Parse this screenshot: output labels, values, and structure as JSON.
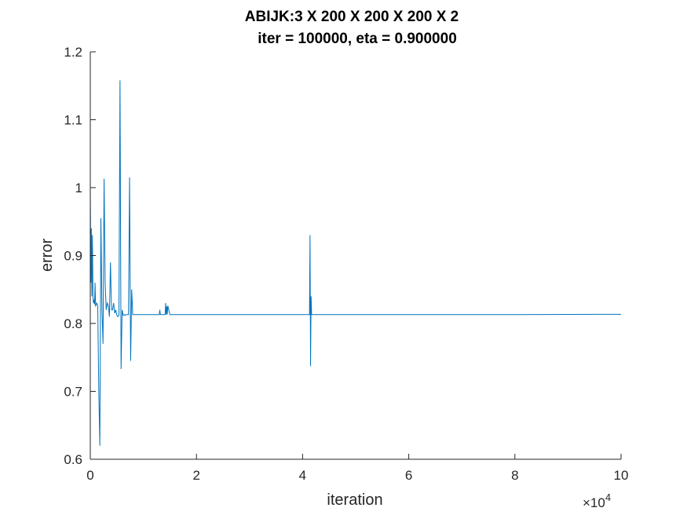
{
  "chart_data": {
    "type": "line",
    "title": "ABIJK:3 X 200 X 200 X 200 X 2",
    "subtitle": "iter = 100000, eta = 0.900000",
    "xlabel": "iteration",
    "ylabel": "error",
    "x_exponent_base": "×10",
    "x_exponent_power": "4",
    "xlim": [
      0,
      10
    ],
    "ylim": [
      0.6,
      1.2
    ],
    "xticks": [
      "0",
      "2",
      "4",
      "6",
      "8",
      "10"
    ],
    "yticks": [
      "0.6",
      "0.7",
      "0.8",
      "0.9",
      "1",
      "1.1",
      "1.2"
    ],
    "grid": false,
    "color": "#0072BD",
    "series": [
      {
        "x": [
          0,
          0.01,
          0.02,
          0.03,
          0.04,
          0.05,
          0.06,
          0.07,
          0.08,
          0.09,
          0.1,
          0.12,
          0.14,
          0.16,
          0.18,
          0.2,
          0.22,
          0.24,
          0.26,
          0.28,
          0.3,
          0.32,
          0.34,
          0.36,
          0.38,
          0.4,
          0.42,
          0.44,
          0.46,
          0.48,
          0.5,
          0.52,
          0.54,
          0.56,
          0.58,
          0.6,
          0.62,
          0.64,
          0.66,
          0.68,
          0.7,
          0.72,
          0.74,
          0.76,
          0.78,
          0.8,
          1.2,
          1.3,
          1.31,
          1.32,
          1.4,
          1.41,
          1.42,
          1.43,
          1.44,
          1.45,
          1.46,
          1.5,
          4.1,
          4.13,
          4.14,
          4.15,
          4.16,
          4.17,
          4.2,
          6,
          8,
          10
        ],
        "y": [
          1.0,
          0.86,
          0.94,
          0.84,
          0.93,
          0.84,
          0.83,
          0.835,
          0.828,
          0.86,
          0.825,
          0.83,
          0.827,
          0.7,
          0.62,
          0.955,
          0.82,
          0.77,
          1.013,
          0.86,
          0.82,
          0.83,
          0.826,
          0.81,
          0.89,
          0.82,
          0.82,
          0.83,
          0.815,
          0.82,
          0.812,
          0.81,
          0.812,
          1.158,
          0.733,
          0.82,
          0.812,
          0.813,
          0.812,
          0.813,
          0.813,
          0.813,
          1.015,
          0.745,
          0.85,
          0.813,
          0.813,
          0.813,
          0.82,
          0.813,
          0.813,
          0.813,
          0.83,
          0.813,
          0.825,
          0.813,
          0.826,
          0.813,
          0.813,
          0.813,
          0.93,
          0.737,
          0.84,
          0.813,
          0.813,
          0.813,
          0.813,
          0.8135
        ]
      }
    ]
  }
}
